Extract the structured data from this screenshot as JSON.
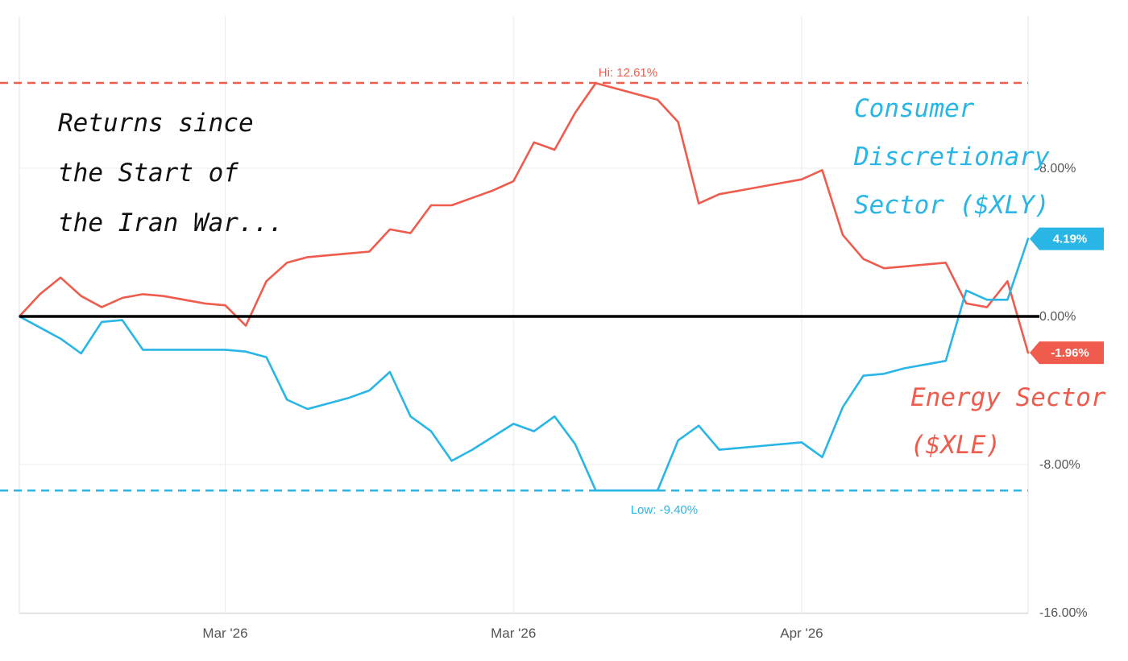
{
  "chart_data": {
    "type": "line",
    "x": [
      "d0",
      "d1",
      "d2",
      "d3",
      "d4",
      "d5",
      "d6",
      "d7",
      "d8",
      "d9",
      "d10",
      "d11",
      "d12",
      "d13",
      "d14",
      "d15",
      "d16",
      "d17",
      "d18",
      "d19",
      "d20",
      "d21",
      "d22",
      "d23",
      "d24",
      "d25",
      "d26",
      "d27",
      "d28",
      "d29",
      "d30",
      "d31",
      "d32",
      "d33",
      "d34",
      "d35",
      "d36",
      "d37",
      "d38",
      "d39",
      "d40",
      "d41",
      "d42",
      "d43",
      "d44",
      "d45",
      "d46",
      "d47",
      "d48",
      "d49"
    ],
    "x_tick_labels": [
      {
        "index": 10,
        "label": "Mar '26"
      },
      {
        "index": 24,
        "label": "Mar '26"
      },
      {
        "index": 38,
        "label": "Apr '26"
      }
    ],
    "series": [
      {
        "color": "#ef5b4c",
        "values": [
          0.0,
          1.2,
          2.1,
          1.1,
          0.5,
          1.0,
          1.2,
          1.1,
          0.9,
          0.7,
          0.6,
          -0.5,
          1.9,
          2.9,
          3.2,
          3.3,
          3.4,
          3.5,
          4.7,
          4.5,
          6.0,
          6.0,
          6.4,
          6.8,
          7.3,
          9.4,
          9.0,
          11.0,
          12.6,
          12.3,
          12.0,
          11.7,
          10.5,
          6.1,
          6.6,
          6.8,
          7.0,
          7.2,
          7.4,
          7.9,
          4.4,
          3.1,
          2.6,
          2.7,
          2.8,
          2.9,
          0.7,
          0.5,
          1.9,
          -1.96
        ]
      },
      {
        "color": "#29b6e6",
        "values": [
          0.0,
          -0.6,
          -1.2,
          -2.0,
          -0.3,
          -0.2,
          -1.8,
          -1.8,
          -1.8,
          -1.8,
          -1.8,
          -1.9,
          -2.2,
          -4.5,
          -5.0,
          -4.7,
          -4.4,
          -4.0,
          -3.0,
          -5.4,
          -6.2,
          -7.8,
          -7.2,
          -6.5,
          -5.8,
          -6.2,
          -5.4,
          -6.9,
          -9.4,
          -9.4,
          -9.4,
          -9.4,
          -6.7,
          -5.9,
          -7.2,
          -7.1,
          -7.0,
          -6.9,
          -6.8,
          -7.6,
          -4.9,
          -3.2,
          -3.1,
          -2.8,
          -2.6,
          -2.4,
          1.4,
          0.9,
          0.9,
          4.19
        ]
      }
    ],
    "y_ticks": [
      {
        "value": 8,
        "label": "8.00%"
      },
      {
        "value": 0,
        "label": "0.00%"
      },
      {
        "value": -8,
        "label": "-8.00%"
      },
      {
        "value": -16,
        "label": "-16.00%"
      }
    ],
    "ylim": [
      -16,
      16
    ],
    "hi": {
      "value": 12.61,
      "label": "Hi: 12.61%",
      "color": "#ef5b4c"
    },
    "low": {
      "value": -9.4,
      "label": "Low: -9.40%",
      "color": "#29b6e6"
    },
    "badges": [
      {
        "label": "4.19%",
        "value": 4.19,
        "color": "#29b6e6"
      },
      {
        "label": "-1.96%",
        "value": -1.96,
        "color": "#ef5b4c"
      }
    ],
    "annotations": {
      "title_lines": [
        "Returns since",
        "the Start of",
        "the Iran War..."
      ],
      "xly_lines": [
        "Consumer",
        "Discretionary",
        "Sector ($XLY)"
      ],
      "xle_lines": [
        "Energy Sector",
        "($XLE)"
      ],
      "title_color": "#111111",
      "xly_color": "#29b6e6",
      "xle_color": "#ef5b4c"
    },
    "grid": true,
    "zero_line_color": "#000000"
  }
}
